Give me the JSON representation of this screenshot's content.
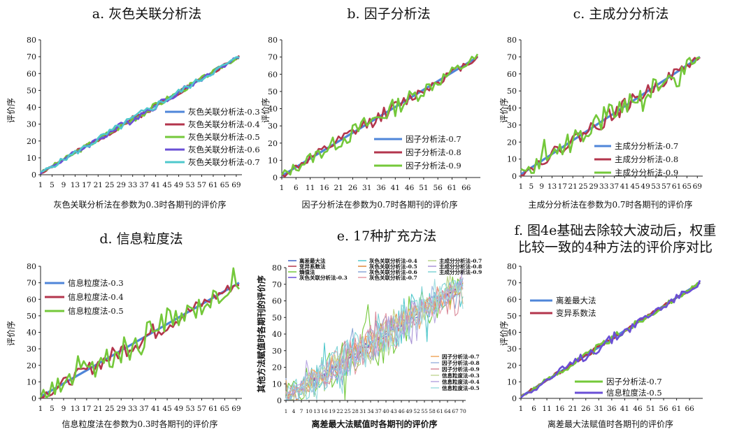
{
  "chart_data": [
    {
      "id": "a",
      "type": "line",
      "title": "a. 灰色关联分析法",
      "xlabel": "灰色关联分析法在参数为0.3时各期刊的评价序",
      "ylabel": "评价序",
      "ylim": [
        0,
        80
      ],
      "yticks": [
        0,
        10,
        20,
        30,
        40,
        50,
        60,
        70,
        80
      ],
      "xlim": [
        1,
        70
      ],
      "xticks": [
        1,
        5,
        9,
        13,
        17,
        21,
        25,
        29,
        33,
        37,
        41,
        45,
        49,
        53,
        57,
        61,
        65,
        69
      ],
      "legend_position": "lower-right",
      "series": [
        {
          "name": "灰色关联分析法-0.3",
          "color": "#4f86d9",
          "noise": 0,
          "seed": 1
        },
        {
          "name": "灰色关联分析法-0.4",
          "color": "#b3354c",
          "noise": 2,
          "seed": 2
        },
        {
          "name": "灰色关联分析法-0.5",
          "color": "#74c83a",
          "noise": 2.2,
          "seed": 3
        },
        {
          "name": "灰色关联分析法-0.6",
          "color": "#6a4fd6",
          "noise": 2.4,
          "seed": 4
        },
        {
          "name": "灰色关联分析法-0.7",
          "color": "#4fc8cc",
          "noise": 2.6,
          "seed": 5
        }
      ]
    },
    {
      "id": "b",
      "type": "line",
      "title": "b. 因子分析法",
      "xlabel": "因子分析法在参数为0.7时各期刊的评价序",
      "ylabel": "评价序",
      "ylim": [
        0,
        80
      ],
      "yticks": [
        0,
        10,
        20,
        30,
        40,
        50,
        60,
        70,
        80
      ],
      "xlim": [
        1,
        70
      ],
      "xticks": [
        1,
        6,
        11,
        16,
        21,
        26,
        31,
        36,
        41,
        46,
        51,
        56,
        61,
        66
      ],
      "legend_position": "lower-right",
      "series": [
        {
          "name": "因子分析法-0.7",
          "color": "#4f86d9",
          "noise": 0,
          "seed": 11
        },
        {
          "name": "因子分析法-0.8",
          "color": "#b3354c",
          "noise": 4,
          "seed": 12
        },
        {
          "name": "因子分析法-0.9",
          "color": "#74c83a",
          "noise": 6,
          "seed": 13
        }
      ]
    },
    {
      "id": "c",
      "type": "line",
      "title": "c. 主成分分析法",
      "xlabel": "主成分分析法在参数为0.7时各期刊的评价序",
      "ylabel": "评价序",
      "ylim": [
        0,
        80
      ],
      "yticks": [
        0,
        10,
        20,
        30,
        40,
        50,
        60,
        70,
        80
      ],
      "xlim": [
        1,
        70
      ],
      "xticks": [
        1,
        5,
        9,
        13,
        17,
        21,
        25,
        29,
        33,
        37,
        41,
        45,
        49,
        53,
        57,
        61,
        65,
        69
      ],
      "legend_position": "lower-right",
      "series": [
        {
          "name": "主成分分析法-0.7",
          "color": "#4f86d9",
          "noise": 0,
          "seed": 21
        },
        {
          "name": "主成分分析法-0.8",
          "color": "#b3354c",
          "noise": 5,
          "seed": 22
        },
        {
          "name": "主成分分析法-0.9",
          "color": "#74c83a",
          "noise": 8,
          "seed": 23
        }
      ]
    },
    {
      "id": "d",
      "type": "line",
      "title": "d. 信息粒度法",
      "xlabel": "信息粒度法在参数为0.3时各期刊的评价序",
      "ylabel": "评价序",
      "ylim": [
        0,
        80
      ],
      "yticks": [
        0,
        10,
        20,
        30,
        40,
        50,
        60,
        70,
        80
      ],
      "xlim": [
        1,
        70
      ],
      "xticks": [
        1,
        5,
        9,
        13,
        17,
        21,
        25,
        29,
        33,
        37,
        41,
        45,
        49,
        53,
        57,
        61,
        65,
        69
      ],
      "legend_position": "top-left",
      "series": [
        {
          "name": "信息粒度法-0.3",
          "color": "#4f86d9",
          "noise": 0,
          "seed": 31
        },
        {
          "name": "信息粒度法-0.4",
          "color": "#b3354c",
          "noise": 6,
          "seed": 32
        },
        {
          "name": "信息粒度法-0.5",
          "color": "#74c83a",
          "noise": 10,
          "seed": 33
        }
      ]
    },
    {
      "id": "e",
      "type": "line",
      "title": "e. 17种扩充方法",
      "xlabel": "离差最大法赋值时各期刊的评价序",
      "ylabel": "其他方法赋值时各期刊的评价序",
      "ylim": [
        0,
        80
      ],
      "yticks": [
        0,
        10,
        20,
        30,
        40,
        50,
        60,
        70,
        80
      ],
      "xlim": [
        1,
        70
      ],
      "xticks": [
        1,
        4,
        7,
        10,
        13,
        16,
        19,
        22,
        25,
        28,
        31,
        34,
        37,
        40,
        43,
        46,
        49,
        52,
        55,
        58,
        61,
        64,
        67,
        70
      ],
      "legend_position": "top",
      "series": [
        {
          "name": "离差最大法",
          "color": "#3d5fc4",
          "noise": 0,
          "seed": 41
        },
        {
          "name": "变异系数法",
          "color": "#b3354c",
          "noise": 2,
          "seed": 42
        },
        {
          "name": "熵值法",
          "color": "#74c83a",
          "noise": 18,
          "seed": 43
        },
        {
          "name": "灰色关联分析法-0.3",
          "color": "#6a4fd6",
          "noise": 3,
          "seed": 44
        },
        {
          "name": "灰色关联分析法-0.4",
          "color": "#4fc8cc",
          "noise": 14,
          "seed": 45
        },
        {
          "name": "灰色关联分析法-0.5",
          "color": "#e0873a",
          "noise": 10,
          "seed": 46
        },
        {
          "name": "灰色关联分析法-0.6",
          "color": "#8aa6d8",
          "noise": 12,
          "seed": 47
        },
        {
          "name": "灰色关联分析法-0.7",
          "color": "#e59aa6",
          "noise": 15,
          "seed": 48
        },
        {
          "name": "主成分分析法-0.7",
          "color": "#b9d48a",
          "noise": 11,
          "seed": 49
        },
        {
          "name": "主成分分析法-0.8",
          "color": "#a893d6",
          "noise": 13,
          "seed": 50
        },
        {
          "name": "主成分分析法-0.9",
          "color": "#7fd3d6",
          "noise": 16,
          "seed": 51
        },
        {
          "name": "因子分析法-0.7",
          "color": "#f0a860",
          "noise": 9,
          "seed": 52
        },
        {
          "name": "因子分析法-0.8",
          "color": "#9fb7e0",
          "noise": 10,
          "seed": 53
        },
        {
          "name": "因子分析法-0.9",
          "color": "#d98a9a",
          "noise": 12,
          "seed": 54
        },
        {
          "name": "信息粒度法-0.3",
          "color": "#c6d99a",
          "noise": 8,
          "seed": 55
        },
        {
          "name": "信息粒度法-0.4",
          "color": "#b8a9e0",
          "noise": 11,
          "seed": 56
        },
        {
          "name": "信息粒度法-0.5",
          "color": "#a0dde0",
          "noise": 14,
          "seed": 57
        }
      ]
    },
    {
      "id": "f",
      "type": "line",
      "title_lines": [
        "f. 图4e基础去除较大波动后，权重",
        "比较一致的4种方法的评价序对比"
      ],
      "xlabel": "离差最大法赋值时各期刊的评价序",
      "ylabel": "评价序",
      "ylim": [
        0,
        80
      ],
      "yticks": [
        0,
        10,
        20,
        30,
        40,
        50,
        60,
        70,
        80
      ],
      "xlim": [
        1,
        70
      ],
      "xticks": [
        1,
        6,
        11,
        16,
        21,
        26,
        31,
        36,
        41,
        46,
        51,
        56,
        61,
        66
      ],
      "legend_position": "top-left / lower-right",
      "series": [
        {
          "name": "离差最大法",
          "color": "#4f86d9",
          "noise": 0,
          "seed": 61
        },
        {
          "name": "变异系数法",
          "color": "#b3354c",
          "noise": 1.5,
          "seed": 62
        },
        {
          "name": "因子分析法-0.7",
          "color": "#74c83a",
          "noise": 2.5,
          "seed": 63
        },
        {
          "name": "信息粒度法-0.5",
          "color": "#6a4fd6",
          "noise": 3.5,
          "seed": 64
        }
      ]
    }
  ]
}
